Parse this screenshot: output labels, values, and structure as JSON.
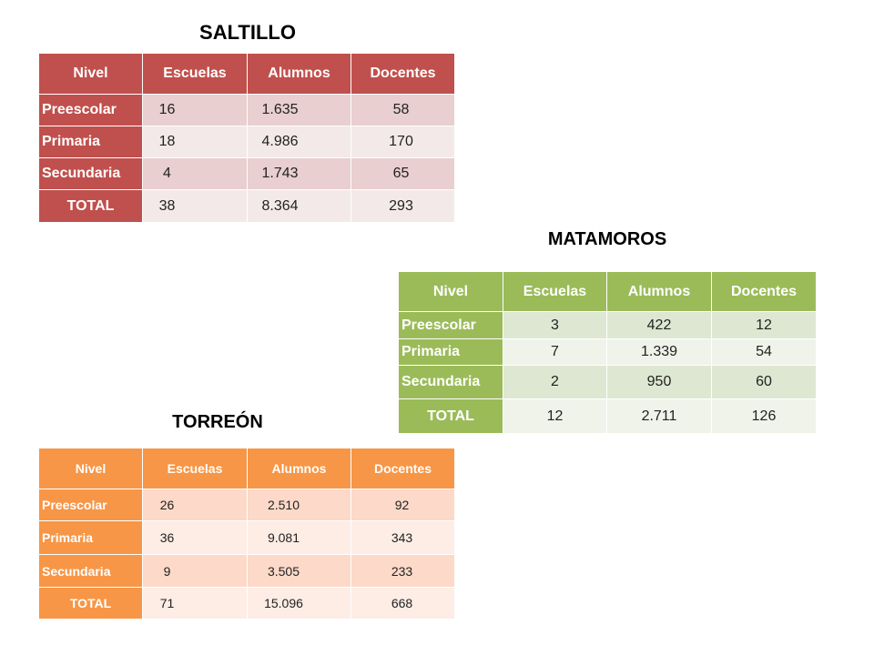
{
  "tables": {
    "saltillo": {
      "title": "SALTILLO",
      "colors": {
        "accent": "#C0504D",
        "band_dark": "#E9CFCF",
        "band_light": "#F4E9E9"
      },
      "headers": [
        "Nivel",
        "Escuelas",
        "Alumnos",
        "Docentes"
      ],
      "rows": [
        [
          "Preescolar",
          "16",
          "1.635",
          "58"
        ],
        [
          "Primaria",
          "18",
          "4.986",
          "170"
        ],
        [
          "Secundaria",
          "4",
          "1.743",
          "65"
        ],
        [
          "TOTAL",
          "38",
          "8.364",
          "293"
        ]
      ]
    },
    "matamoros": {
      "title": "MATAMOROS",
      "colors": {
        "accent": "#9BBB59",
        "band_dark": "#DEE7D1",
        "band_light": "#EFF3EA"
      },
      "headers": [
        "Nivel",
        "Escuelas",
        "Alumnos",
        "Docentes"
      ],
      "rows": [
        [
          "Preescolar",
          "3",
          "422",
          "12"
        ],
        [
          "Primaria",
          "7",
          "1.339",
          "54"
        ],
        [
          "Secundaria",
          "2",
          "950",
          "60"
        ],
        [
          "TOTAL",
          "12",
          "2.711",
          "126"
        ]
      ]
    },
    "torreon": {
      "title": "TORREÓN",
      "colors": {
        "accent": "#F79646",
        "band_dark": "#FCD9C8",
        "band_light": "#FDEDE5"
      },
      "headers": [
        "Nivel",
        "Escuelas",
        "Alumnos",
        "Docentes"
      ],
      "rows": [
        [
          "Preescolar",
          "26",
          "2.510",
          "92"
        ],
        [
          "Primaria",
          "36",
          "9.081",
          "343"
        ],
        [
          "Secundaria",
          "9",
          "3.505",
          "233"
        ],
        [
          "TOTAL",
          "71",
          "15.096",
          "668"
        ]
      ]
    }
  }
}
